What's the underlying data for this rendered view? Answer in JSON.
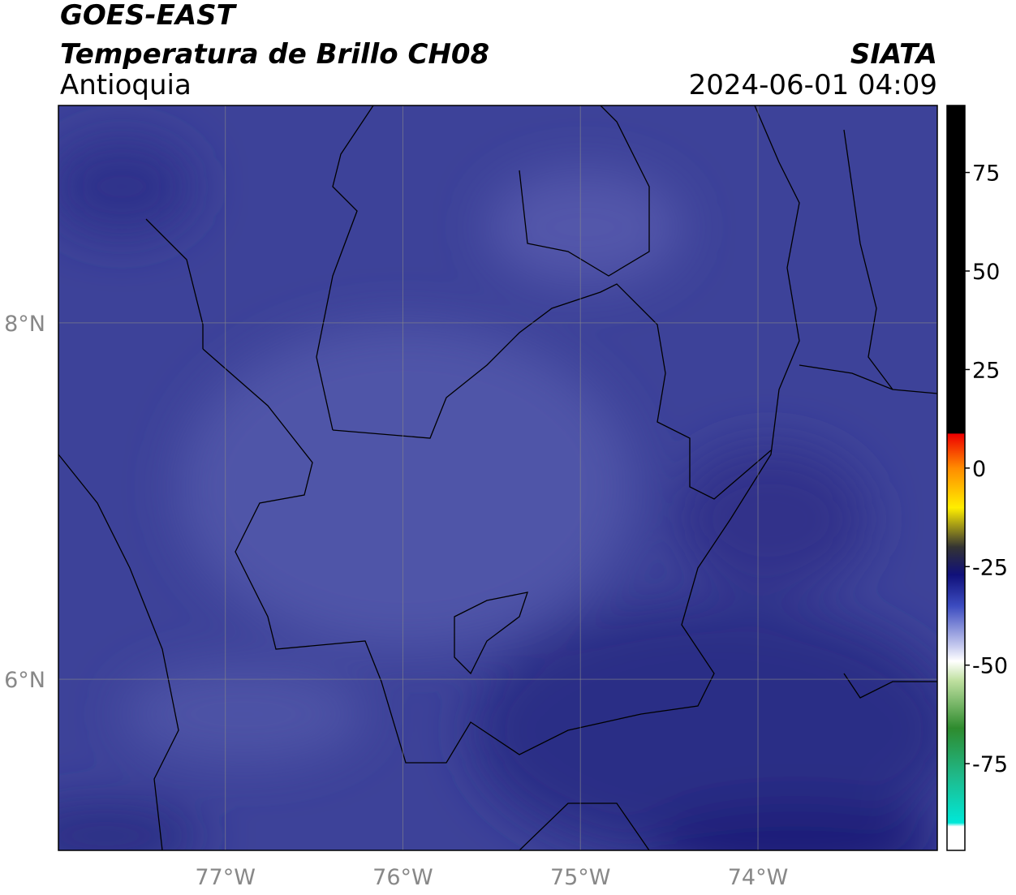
{
  "header": {
    "title": "GOES-EAST",
    "subtitle": "Temperatura de Brillo CH08",
    "region": "Antioquia",
    "source": "SIATA",
    "datetime": "2024-06-01 04:09"
  },
  "map": {
    "xlim": [
      -77.94,
      -72.99
    ],
    "ylim": [
      5.04,
      9.22
    ],
    "xticks": [
      {
        "value": -77,
        "label": "77°W"
      },
      {
        "value": -76,
        "label": "76°W"
      },
      {
        "value": -75,
        "label": "75°W"
      },
      {
        "value": -74,
        "label": "74°W"
      }
    ],
    "yticks": [
      {
        "value": 8,
        "label": "8°N"
      },
      {
        "value": 6,
        "label": "6°N"
      }
    ],
    "grid": true
  },
  "colorbar": {
    "ylim": [
      -97,
      92
    ],
    "yticks": [
      75,
      50,
      25,
      0,
      -25,
      -50,
      -75
    ]
  }
}
